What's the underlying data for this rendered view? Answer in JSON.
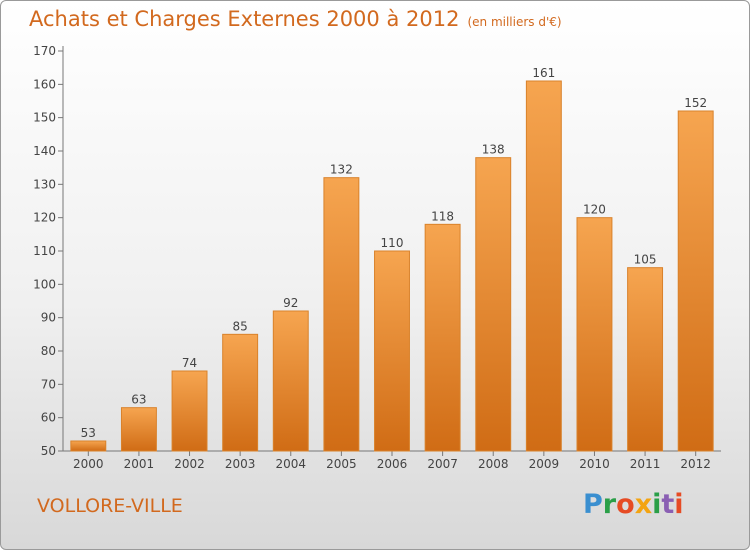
{
  "title": "Achats et Charges Externes 2000 à 2012",
  "unit": "(en milliers d'€)",
  "commune": "VOLLORE-VILLE",
  "logo": {
    "p": "P",
    "r": "r",
    "o": "o",
    "x": "x",
    "i1": "i",
    "t": "t",
    "i2": "i"
  },
  "colors": {
    "bar_top": "#f6a550",
    "bar_bottom": "#d06c15",
    "title": "#d2691e"
  },
  "chart_data": {
    "type": "bar",
    "title": "Achats et Charges Externes 2000 à 2012",
    "categories": [
      "2000",
      "2001",
      "2002",
      "2003",
      "2004",
      "2005",
      "2006",
      "2007",
      "2008",
      "2009",
      "2010",
      "2011",
      "2012"
    ],
    "values": [
      53,
      63,
      74,
      85,
      92,
      132,
      110,
      118,
      138,
      161,
      120,
      105,
      152
    ],
    "ylim": [
      50,
      170
    ],
    "yticks": [
      50,
      60,
      70,
      80,
      90,
      100,
      110,
      120,
      130,
      140,
      150,
      160,
      170
    ],
    "grid": false,
    "legend": "none"
  }
}
